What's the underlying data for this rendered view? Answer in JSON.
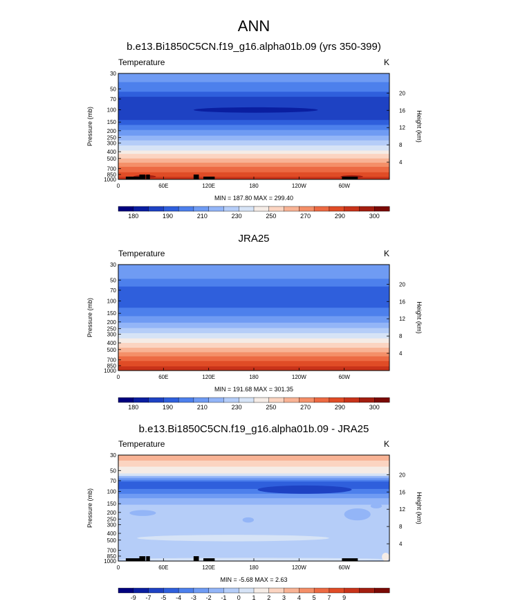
{
  "figure": {
    "title": "ANN"
  },
  "chart_data": [
    {
      "type": "heatmap",
      "title": "b.e13.Bi1850C5CN.f19_g16.alpha01b.09 (yrs 350-399)",
      "variable": "Temperature",
      "units": "K",
      "xlabel": "",
      "ylabel": "Pressure (mb)",
      "y2label": "Height (km)",
      "x_ticks": [
        "0",
        "60E",
        "120E",
        "180",
        "120W",
        "60W"
      ],
      "y_ticks": [
        "30",
        "50",
        "70",
        "100",
        "150",
        "200",
        "250",
        "300",
        "400",
        "500",
        "700",
        "850",
        "1000"
      ],
      "y2_ticks": [
        "20",
        "16",
        "12",
        "8",
        "4"
      ],
      "stats": "MIN = 187.80  MAX = 299.40",
      "colorbar_labels": [
        "180",
        "190",
        "210",
        "230",
        "250",
        "270",
        "290",
        "300"
      ],
      "colorbar_colors": [
        "#00007e",
        "#0a1ea0",
        "#1e42c3",
        "#2f5fdc",
        "#4d80ec",
        "#6f9bf3",
        "#93b5f7",
        "#b5cdf8",
        "#d6e3f6",
        "#f5ece6",
        "#fbd4c1",
        "#f8b395",
        "#f48f68",
        "#ec6a43",
        "#e04c26",
        "#c8331a",
        "#a31e10",
        "#7a0a05"
      ],
      "bands": [
        {
          "p": 30,
          "c": "#6f9bf3"
        },
        {
          "p": 40,
          "c": "#4d80ec"
        },
        {
          "p": 55,
          "c": "#2f5fdc"
        },
        {
          "p": 65,
          "c": "#1e42c3"
        },
        {
          "p": 140,
          "c": "#2f5fdc"
        },
        {
          "p": 165,
          "c": "#4d80ec"
        },
        {
          "p": 195,
          "c": "#6f9bf3"
        },
        {
          "p": 235,
          "c": "#93b5f7"
        },
        {
          "p": 275,
          "c": "#b5cdf8"
        },
        {
          "p": 325,
          "c": "#d6e3f6"
        },
        {
          "p": 385,
          "c": "#f5ece6"
        },
        {
          "p": 430,
          "c": "#fbd4c1"
        },
        {
          "p": 500,
          "c": "#f8b395"
        },
        {
          "p": 575,
          "c": "#f48f68"
        },
        {
          "p": 660,
          "c": "#ec6a43"
        },
        {
          "p": 790,
          "c": "#e04c26"
        },
        {
          "p": 920,
          "c": "#c8331a"
        }
      ],
      "features": [
        {
          "kind": "lens",
          "lon0": 100,
          "lon1": 265,
          "p_top": 92,
          "p_bot": 110,
          "c": "#0a1ea0"
        },
        {
          "kind": "blob",
          "lon0": 20,
          "lon1": 50,
          "p_top": 865,
          "p_bot": 960,
          "c": "#a31e10"
        },
        {
          "kind": "blob",
          "lon0": 295,
          "lon1": 325,
          "p_top": 870,
          "p_bot": 960,
          "c": "#a31e10"
        }
      ],
      "topography": [
        [
          10,
          30
        ],
        [
          28,
          36
        ],
        [
          37,
          42
        ],
        [
          100,
          107
        ],
        [
          113,
          128
        ],
        [
          297,
          318
        ]
      ]
    },
    {
      "type": "heatmap",
      "title": "JRA25",
      "variable": "Temperature",
      "units": "K",
      "xlabel": "",
      "ylabel": "Pressure (mb)",
      "y2label": "Height (km)",
      "x_ticks": [
        "0",
        "60E",
        "120E",
        "180",
        "120W",
        "60W"
      ],
      "y_ticks": [
        "30",
        "50",
        "70",
        "100",
        "150",
        "200",
        "250",
        "300",
        "400",
        "500",
        "700",
        "850",
        "1000"
      ],
      "y2_ticks": [
        "20",
        "16",
        "12",
        "8",
        "4"
      ],
      "stats": "MIN = 191.68  MAX = 301.35",
      "colorbar_labels": [
        "180",
        "190",
        "210",
        "230",
        "250",
        "270",
        "290",
        "300"
      ],
      "colorbar_colors": [
        "#00007e",
        "#0a1ea0",
        "#1e42c3",
        "#2f5fdc",
        "#4d80ec",
        "#6f9bf3",
        "#93b5f7",
        "#b5cdf8",
        "#d6e3f6",
        "#f5ece6",
        "#fbd4c1",
        "#f8b395",
        "#f48f68",
        "#ec6a43",
        "#e04c26",
        "#c8331a",
        "#a31e10",
        "#7a0a05"
      ],
      "bands": [
        {
          "p": 30,
          "c": "#6f9bf3"
        },
        {
          "p": 48,
          "c": "#4d80ec"
        },
        {
          "p": 62,
          "c": "#2f5fdc"
        },
        {
          "p": 125,
          "c": "#4d80ec"
        },
        {
          "p": 165,
          "c": "#6f9bf3"
        },
        {
          "p": 205,
          "c": "#93b5f7"
        },
        {
          "p": 245,
          "c": "#b5cdf8"
        },
        {
          "p": 290,
          "c": "#d6e3f6"
        },
        {
          "p": 345,
          "c": "#f5ece6"
        },
        {
          "p": 400,
          "c": "#fbd4c1"
        },
        {
          "p": 470,
          "c": "#f8b395"
        },
        {
          "p": 545,
          "c": "#f48f68"
        },
        {
          "p": 625,
          "c": "#ec6a43"
        },
        {
          "p": 730,
          "c": "#e04c26"
        },
        {
          "p": 870,
          "c": "#c8331a"
        }
      ],
      "features": [],
      "topography": []
    },
    {
      "type": "heatmap",
      "title": "b.e13.Bi1850C5CN.f19_g16.alpha01b.09 - JRA25",
      "variable": "Temperature",
      "units": "K",
      "xlabel": "",
      "ylabel": "Pressure (mb)",
      "y2label": "Height (km)",
      "x_ticks": [
        "0",
        "60E",
        "120E",
        "180",
        "120W",
        "60W"
      ],
      "y_ticks": [
        "30",
        "50",
        "70",
        "100",
        "150",
        "200",
        "250",
        "300",
        "400",
        "500",
        "700",
        "850",
        "1000"
      ],
      "y2_ticks": [
        "20",
        "16",
        "12",
        "8",
        "4"
      ],
      "stats": "MIN = -5.68  MAX =  2.63",
      "colorbar_labels": [
        "-9",
        "-7",
        "-5",
        "-4",
        "-3",
        "-2",
        "-1",
        "0",
        "1",
        "2",
        "3",
        "4",
        "5",
        "7",
        "9"
      ],
      "colorbar_colors": [
        "#00007e",
        "#0a1ea0",
        "#1e42c3",
        "#2f5fdc",
        "#4d80ec",
        "#6f9bf3",
        "#93b5f7",
        "#b5cdf8",
        "#d6e3f6",
        "#f5ece6",
        "#fbd4c1",
        "#f8b395",
        "#f48f68",
        "#ec6a43",
        "#e04c26",
        "#c8331a",
        "#a31e10",
        "#7a0a05"
      ],
      "bands": [
        {
          "p": 30,
          "c": "#f8b395"
        },
        {
          "p": 36,
          "c": "#fbd4c1"
        },
        {
          "p": 44,
          "c": "#f5ece6"
        },
        {
          "p": 55,
          "c": "#d6e3f6"
        },
        {
          "p": 60,
          "c": "#93b5f7"
        },
        {
          "p": 64,
          "c": "#6f9bf3"
        },
        {
          "p": 68,
          "c": "#4d80ec"
        },
        {
          "p": 72,
          "c": "#2f5fdc"
        },
        {
          "p": 92,
          "c": "#4d80ec"
        },
        {
          "p": 108,
          "c": "#6f9bf3"
        },
        {
          "p": 125,
          "c": "#93b5f7"
        },
        {
          "p": 155,
          "c": "#b5cdf8"
        },
        {
          "p": 1000,
          "c": "#b5cdf8"
        }
      ],
      "features": [
        {
          "kind": "lens",
          "lon0": 185,
          "lon1": 310,
          "p_top": 82,
          "p_bot": 108,
          "c": "#1e42c3"
        },
        {
          "kind": "blob",
          "lon0": 15,
          "lon1": 50,
          "p_top": 185,
          "p_bot": 225,
          "c": "#93b5f7"
        },
        {
          "kind": "blob",
          "lon0": 300,
          "lon1": 335,
          "p_top": 175,
          "p_bot": 260,
          "c": "#93b5f7"
        },
        {
          "kind": "blob",
          "lon0": 335,
          "lon1": 350,
          "p_top": 150,
          "p_bot": 175,
          "c": "#93b5f7"
        },
        {
          "kind": "blob",
          "lon0": 165,
          "lon1": 180,
          "p_top": 235,
          "p_bot": 280,
          "c": "#93b5f7"
        },
        {
          "kind": "blob",
          "lon0": 25,
          "lon1": 280,
          "p_top": 420,
          "p_bot": 520,
          "c": "#d6e3f6"
        },
        {
          "kind": "blob",
          "lon0": 0,
          "lon1": 360,
          "p_top": 900,
          "p_bot": 1000,
          "c": "#d6e3f6"
        },
        {
          "kind": "blob",
          "lon0": 350,
          "lon1": 360,
          "p_top": 760,
          "p_bot": 1000,
          "c": "#f5ece6"
        }
      ],
      "topography": [
        [
          10,
          30
        ],
        [
          28,
          36
        ],
        [
          37,
          42
        ],
        [
          100,
          107
        ],
        [
          113,
          128
        ],
        [
          297,
          318
        ]
      ]
    }
  ]
}
